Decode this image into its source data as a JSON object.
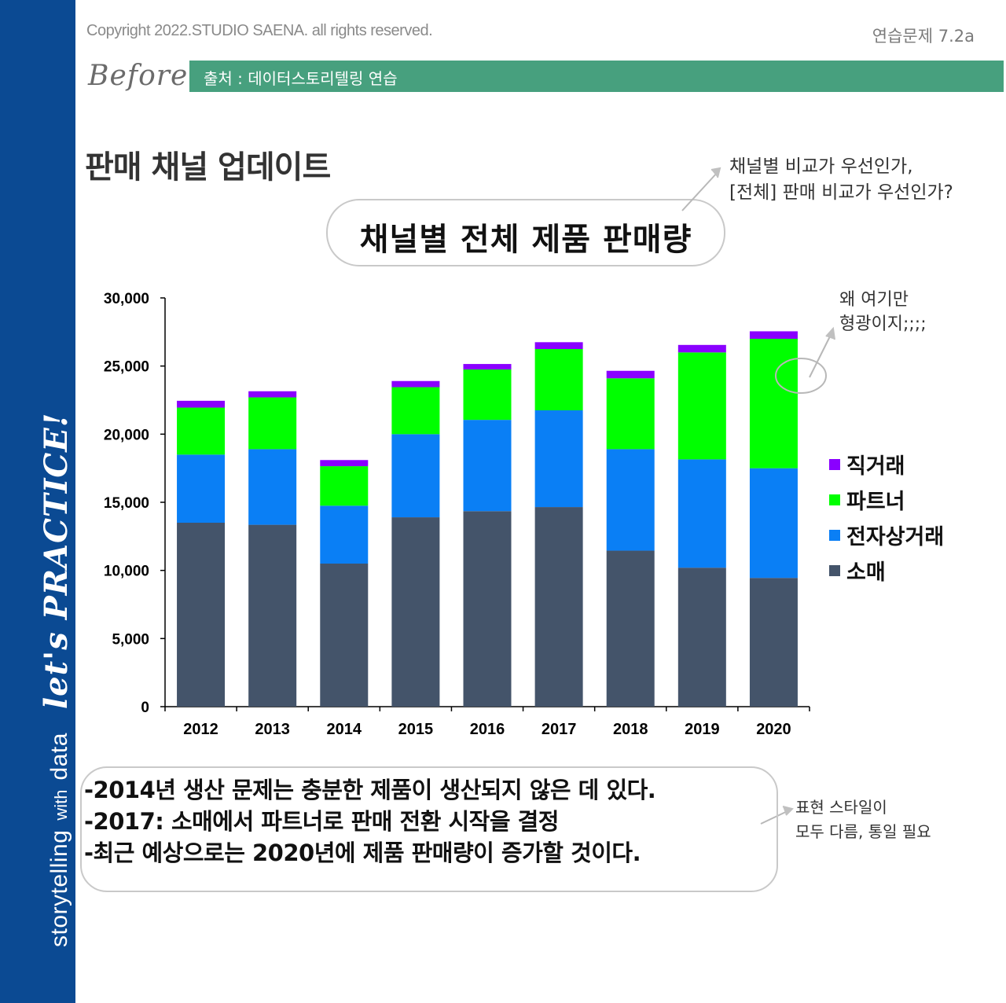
{
  "sidebar": {
    "text_small": "storytelling",
    "text_with": "with",
    "text_data": "data",
    "text_big": "let's PRACTICE!"
  },
  "header": {
    "copyright": "Copyright 2022.STUDIO SAENA. all rights reserved.",
    "exercise": "연습문제 7.2a",
    "before": "Before",
    "source": "출처 : 데이터스토리텔링 연습"
  },
  "page_title": "판매 채널 업데이트",
  "notes": {
    "note1_line1": "채널별 비교가 우선인가,",
    "note1_line2": "[전체] 판매 비교가 우선인가?",
    "note2_line1": "왜 여기만",
    "note2_line2": "형광이지;;;;",
    "note3_line1": "표현 스타일이",
    "note3_line2": "모두 다름, 통일 필요"
  },
  "body_text": {
    "line1": "-2014년 생산 문제는 충분한 제품이 생산되지 않은 데 있다.",
    "line2": "-2017: 소매에서 파트너로 판매 전환 시작을 결정",
    "line3": "-최근 예상으로는 2020년에 제품 판매량이 증가할 것이다."
  },
  "colors": {
    "sidebar": "#0b4a93",
    "source_bar": "#47a07e",
    "retail": "#44546a",
    "ecommerce": "#0a7ff5",
    "partner": "#00ff00",
    "direct": "#8a00ff"
  },
  "chart_data": {
    "type": "bar",
    "stacked": true,
    "title": "채널별 전체 제품 판매량",
    "categories": [
      "2012",
      "2013",
      "2014",
      "2015",
      "2016",
      "2017",
      "2018",
      "2019",
      "2020"
    ],
    "series": [
      {
        "name": "소매",
        "color": "#44546a",
        "values": [
          13500,
          13350,
          10500,
          13900,
          14350,
          14650,
          11450,
          10200,
          9450
        ]
      },
      {
        "name": "전자상거래",
        "color": "#0a7ff5",
        "values": [
          5000,
          5550,
          4250,
          6100,
          6700,
          7100,
          7450,
          7950,
          8050
        ]
      },
      {
        "name": "파트너",
        "color": "#00ff00",
        "values": [
          3450,
          3800,
          2900,
          3450,
          3700,
          4500,
          5200,
          7850,
          9500
        ]
      },
      {
        "name": "직거래",
        "color": "#8a00ff",
        "values": [
          500,
          450,
          450,
          450,
          400,
          500,
          550,
          550,
          550
        ]
      }
    ],
    "legend_order": [
      "직거래",
      "파트너",
      "전자상거래",
      "소매"
    ],
    "ylim": [
      0,
      30000
    ],
    "yticks": [
      0,
      5000,
      10000,
      15000,
      20000,
      25000,
      30000
    ],
    "ytick_labels": [
      "0",
      "5,000",
      "10,000",
      "15,000",
      "20,000",
      "25,000",
      "30,000"
    ],
    "xlabel": "",
    "ylabel": "",
    "legend_position": "right"
  }
}
